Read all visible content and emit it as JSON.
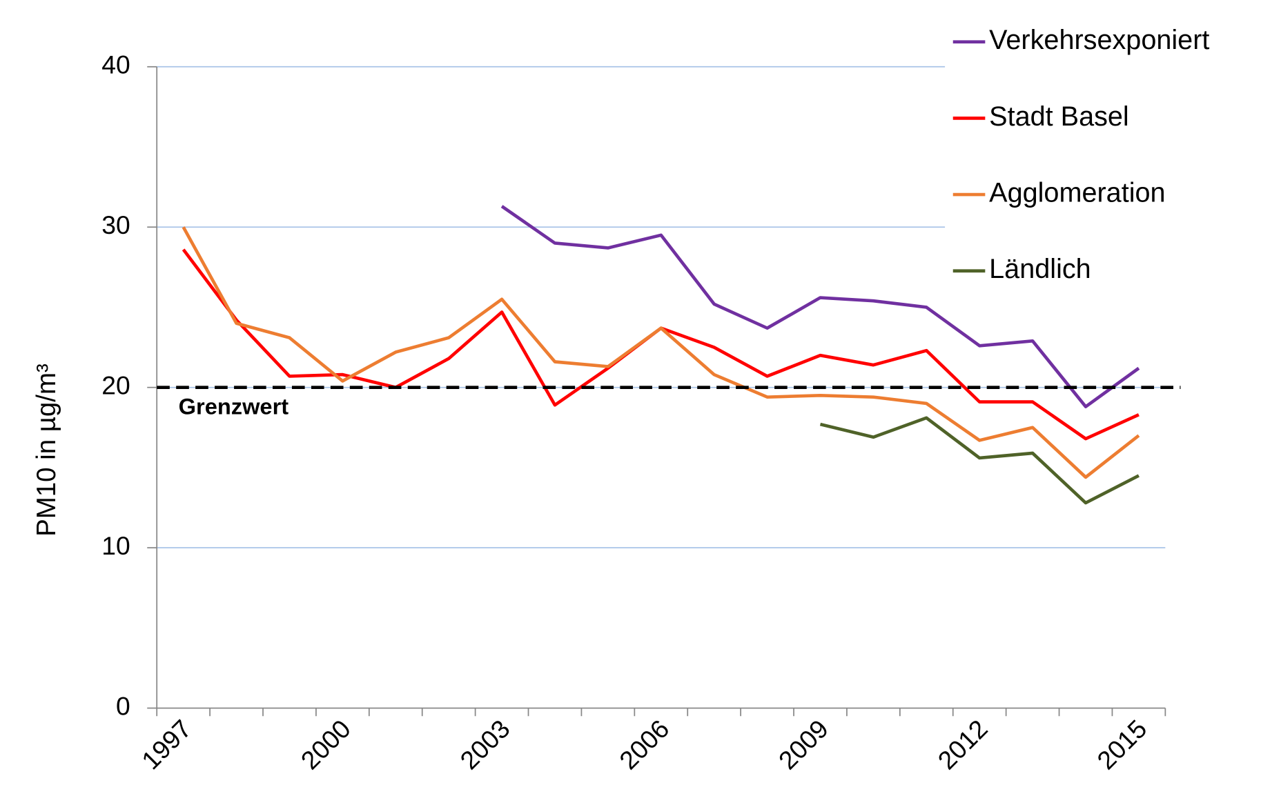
{
  "chart_data": {
    "type": "line",
    "y_label": "PM10 in µg/m³",
    "categories": [
      "1997",
      null,
      null,
      "2000",
      null,
      null,
      "2003",
      null,
      null,
      "2006",
      null,
      null,
      "2009",
      null,
      null,
      "2012",
      null,
      null,
      "2015"
    ],
    "series": [
      {
        "name": "Verkehrsexponiert",
        "color": "#7030a0",
        "values": [
          null,
          null,
          null,
          null,
          null,
          null,
          31.3,
          29.0,
          28.7,
          29.5,
          25.2,
          23.7,
          25.6,
          25.4,
          25.0,
          22.6,
          22.9,
          18.8,
          21.2
        ]
      },
      {
        "name": "Stadt Basel",
        "color": "#ff0000",
        "values": [
          28.6,
          24.2,
          20.7,
          20.8,
          20.0,
          21.8,
          24.7,
          18.9,
          21.2,
          23.7,
          22.5,
          20.7,
          22.0,
          21.4,
          22.3,
          19.1,
          19.1,
          16.8,
          18.3
        ]
      },
      {
        "name": "Agglomeration",
        "color": "#ed7d31",
        "values": [
          30.0,
          24.0,
          23.1,
          20.4,
          22.2,
          23.1,
          25.5,
          21.6,
          21.3,
          23.7,
          20.8,
          19.4,
          19.5,
          19.4,
          19.0,
          16.7,
          17.5,
          14.4,
          17.0
        ]
      },
      {
        "name": "Ländlich",
        "color": "#4f6228",
        "values": [
          null,
          null,
          null,
          null,
          null,
          null,
          null,
          null,
          null,
          null,
          null,
          null,
          17.7,
          16.9,
          18.1,
          15.6,
          15.9,
          12.8,
          14.5
        ]
      }
    ],
    "threshold": {
      "value": 20,
      "label": "Grenzwert"
    },
    "ylim": [
      0,
      40
    ],
    "yticks": [
      0,
      10,
      20,
      30,
      40
    ],
    "grid": true,
    "legend": "right"
  }
}
